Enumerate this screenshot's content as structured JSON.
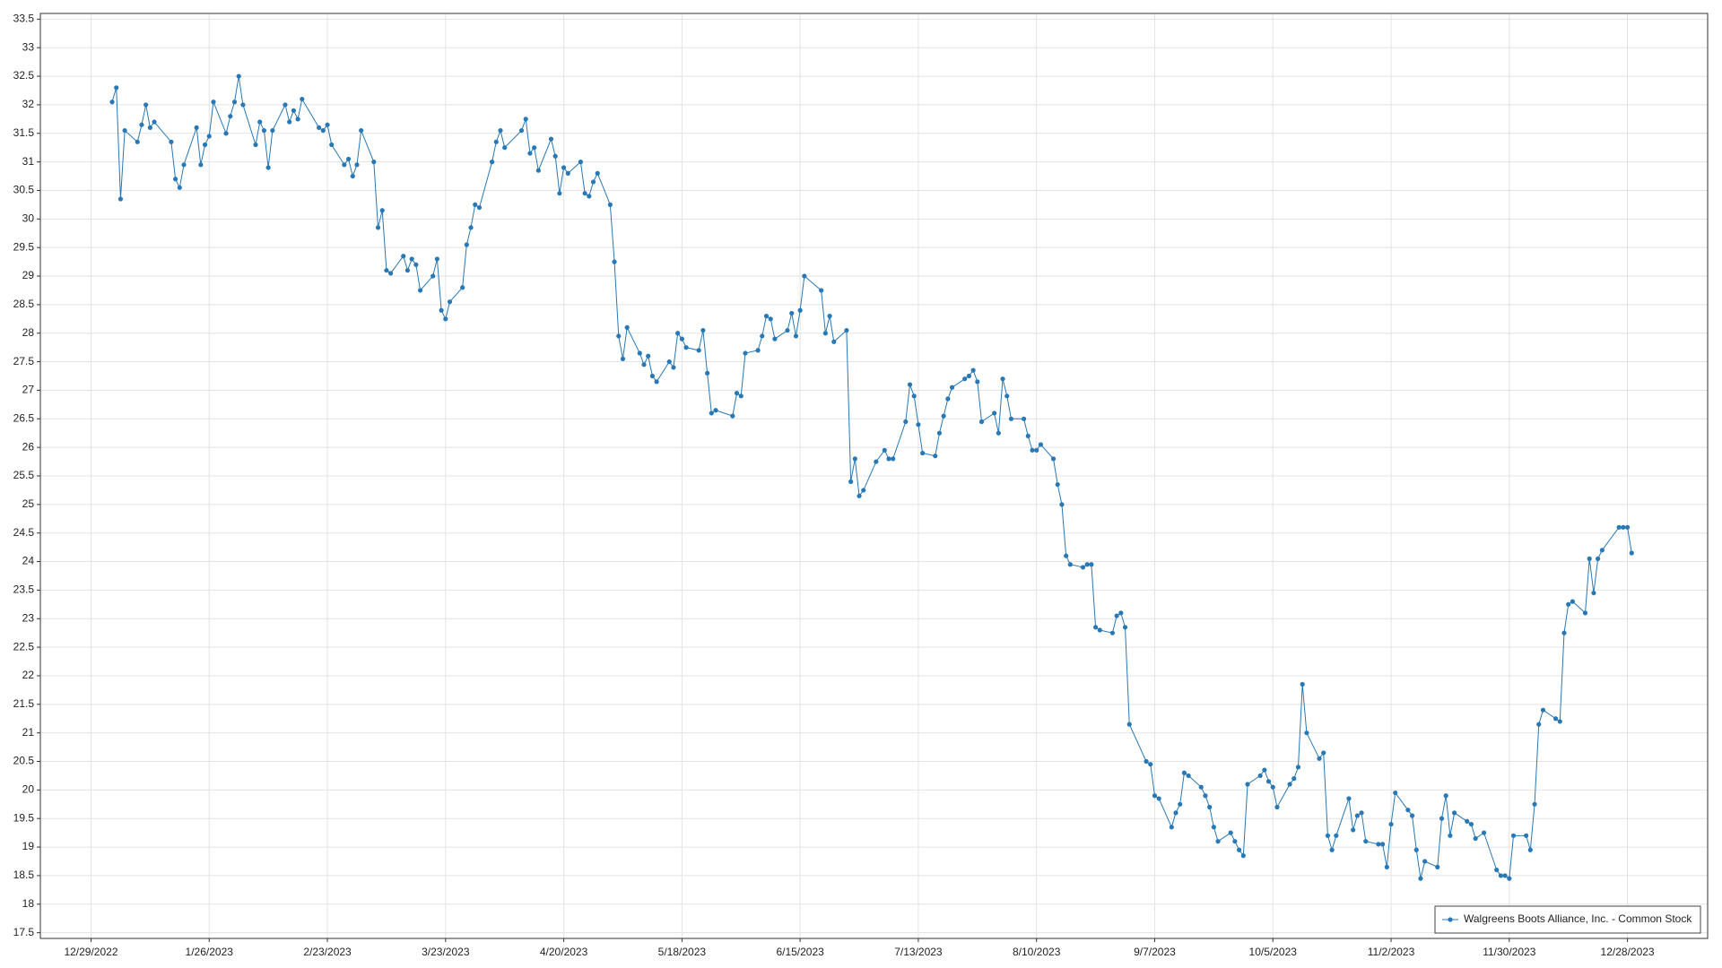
{
  "chart_data": {
    "type": "line",
    "x": [
      "2023-01-03",
      "2023-01-04",
      "2023-01-05",
      "2023-01-06",
      "2023-01-09",
      "2023-01-10",
      "2023-01-11",
      "2023-01-12",
      "2023-01-13",
      "2023-01-17",
      "2023-01-18",
      "2023-01-19",
      "2023-01-20",
      "2023-01-23",
      "2023-01-24",
      "2023-01-25",
      "2023-01-26",
      "2023-01-27",
      "2023-01-30",
      "2023-01-31",
      "2023-02-01",
      "2023-02-02",
      "2023-02-03",
      "2023-02-06",
      "2023-02-07",
      "2023-02-08",
      "2023-02-09",
      "2023-02-10",
      "2023-02-13",
      "2023-02-14",
      "2023-02-15",
      "2023-02-16",
      "2023-02-17",
      "2023-02-21",
      "2023-02-22",
      "2023-02-23",
      "2023-02-24",
      "2023-02-27",
      "2023-02-28",
      "2023-03-01",
      "2023-03-02",
      "2023-03-03",
      "2023-03-06",
      "2023-03-07",
      "2023-03-08",
      "2023-03-09",
      "2023-03-10",
      "2023-03-13",
      "2023-03-14",
      "2023-03-15",
      "2023-03-16",
      "2023-03-17",
      "2023-03-20",
      "2023-03-21",
      "2023-03-22",
      "2023-03-23",
      "2023-03-24",
      "2023-03-27",
      "2023-03-28",
      "2023-03-29",
      "2023-03-30",
      "2023-03-31",
      "2023-04-03",
      "2023-04-04",
      "2023-04-05",
      "2023-04-06",
      "2023-04-10",
      "2023-04-11",
      "2023-04-12",
      "2023-04-13",
      "2023-04-14",
      "2023-04-17",
      "2023-04-18",
      "2023-04-19",
      "2023-04-20",
      "2023-04-21",
      "2023-04-24",
      "2023-04-25",
      "2023-04-26",
      "2023-04-27",
      "2023-04-28",
      "2023-05-01",
      "2023-05-02",
      "2023-05-03",
      "2023-05-04",
      "2023-05-05",
      "2023-05-08",
      "2023-05-09",
      "2023-05-10",
      "2023-05-11",
      "2023-05-12",
      "2023-05-15",
      "2023-05-16",
      "2023-05-17",
      "2023-05-18",
      "2023-05-19",
      "2023-05-22",
      "2023-05-23",
      "2023-05-24",
      "2023-05-25",
      "2023-05-26",
      "2023-05-30",
      "2023-05-31",
      "2023-06-01",
      "2023-06-02",
      "2023-06-05",
      "2023-06-06",
      "2023-06-07",
      "2023-06-08",
      "2023-06-09",
      "2023-06-12",
      "2023-06-13",
      "2023-06-14",
      "2023-06-15",
      "2023-06-16",
      "2023-06-20",
      "2023-06-21",
      "2023-06-22",
      "2023-06-23",
      "2023-06-26",
      "2023-06-27",
      "2023-06-28",
      "2023-06-29",
      "2023-06-30",
      "2023-07-03",
      "2023-07-05",
      "2023-07-06",
      "2023-07-07",
      "2023-07-10",
      "2023-07-11",
      "2023-07-12",
      "2023-07-13",
      "2023-07-14",
      "2023-07-17",
      "2023-07-18",
      "2023-07-19",
      "2023-07-20",
      "2023-07-21",
      "2023-07-24",
      "2023-07-25",
      "2023-07-26",
      "2023-07-27",
      "2023-07-28",
      "2023-07-31",
      "2023-08-01",
      "2023-08-02",
      "2023-08-03",
      "2023-08-04",
      "2023-08-07",
      "2023-08-08",
      "2023-08-09",
      "2023-08-10",
      "2023-08-11",
      "2023-08-14",
      "2023-08-15",
      "2023-08-16",
      "2023-08-17",
      "2023-08-18",
      "2023-08-21",
      "2023-08-22",
      "2023-08-23",
      "2023-08-24",
      "2023-08-25",
      "2023-08-28",
      "2023-08-29",
      "2023-08-30",
      "2023-08-31",
      "2023-09-01",
      "2023-09-05",
      "2023-09-06",
      "2023-09-07",
      "2023-09-08",
      "2023-09-11",
      "2023-09-12",
      "2023-09-13",
      "2023-09-14",
      "2023-09-15",
      "2023-09-18",
      "2023-09-19",
      "2023-09-20",
      "2023-09-21",
      "2023-09-22",
      "2023-09-25",
      "2023-09-26",
      "2023-09-27",
      "2023-09-28",
      "2023-09-29",
      "2023-10-02",
      "2023-10-03",
      "2023-10-04",
      "2023-10-05",
      "2023-10-06",
      "2023-10-09",
      "2023-10-10",
      "2023-10-11",
      "2023-10-12",
      "2023-10-13",
      "2023-10-16",
      "2023-10-17",
      "2023-10-18",
      "2023-10-19",
      "2023-10-20",
      "2023-10-23",
      "2023-10-24",
      "2023-10-25",
      "2023-10-26",
      "2023-10-27",
      "2023-10-30",
      "2023-10-31",
      "2023-11-01",
      "2023-11-02",
      "2023-11-03",
      "2023-11-06",
      "2023-11-07",
      "2023-11-08",
      "2023-11-09",
      "2023-11-10",
      "2023-11-13",
      "2023-11-14",
      "2023-11-15",
      "2023-11-16",
      "2023-11-17",
      "2023-11-20",
      "2023-11-21",
      "2023-11-22",
      "2023-11-24",
      "2023-11-27",
      "2023-11-28",
      "2023-11-29",
      "2023-11-30",
      "2023-12-01",
      "2023-12-04",
      "2023-12-05",
      "2023-12-06",
      "2023-12-07",
      "2023-12-08",
      "2023-12-11",
      "2023-12-12",
      "2023-12-13",
      "2023-12-14",
      "2023-12-15",
      "2023-12-18",
      "2023-12-19",
      "2023-12-20",
      "2023-12-21",
      "2023-12-22",
      "2023-12-26",
      "2023-12-27",
      "2023-12-28",
      "2023-12-29"
    ],
    "series": [
      {
        "name": "Walgreens Boots Alliance, Inc. - Common Stock",
        "color": "#2878b5",
        "values": [
          32.05,
          32.3,
          30.35,
          31.55,
          31.35,
          31.65,
          32.0,
          31.6,
          31.7,
          31.35,
          30.7,
          30.55,
          30.95,
          31.6,
          30.95,
          31.3,
          31.45,
          32.05,
          31.5,
          31.8,
          32.05,
          32.5,
          32.0,
          31.3,
          31.7,
          31.55,
          30.9,
          31.55,
          32.0,
          31.7,
          31.9,
          31.75,
          32.1,
          31.6,
          31.55,
          31.65,
          31.3,
          30.95,
          31.05,
          30.75,
          30.95,
          31.55,
          31.0,
          29.85,
          30.15,
          29.1,
          29.05,
          29.35,
          29.1,
          29.3,
          29.2,
          28.75,
          29.0,
          29.3,
          28.4,
          28.25,
          28.55,
          28.8,
          29.55,
          29.85,
          30.25,
          30.2,
          31.0,
          31.35,
          31.55,
          31.25,
          31.55,
          31.75,
          31.15,
          31.25,
          30.85,
          31.4,
          31.1,
          30.45,
          30.9,
          30.8,
          31.0,
          30.45,
          30.4,
          30.65,
          30.8,
          30.25,
          29.25,
          27.95,
          27.55,
          28.1,
          27.65,
          27.45,
          27.6,
          27.25,
          27.15,
          27.5,
          27.4,
          28.0,
          27.9,
          27.75,
          27.7,
          28.05,
          27.3,
          26.6,
          26.65,
          26.55,
          26.95,
          26.9,
          27.65,
          27.7,
          27.95,
          28.3,
          28.25,
          27.9,
          28.05,
          28.35,
          27.95,
          28.4,
          29.0,
          28.75,
          28.0,
          28.3,
          27.85,
          28.05,
          25.4,
          25.8,
          25.15,
          25.25,
          25.75,
          25.95,
          25.8,
          25.8,
          26.45,
          27.1,
          26.9,
          26.4,
          25.9,
          25.85,
          26.25,
          26.55,
          26.85,
          27.05,
          27.2,
          27.25,
          27.35,
          27.15,
          26.45,
          26.6,
          26.25,
          27.2,
          26.9,
          26.5,
          26.5,
          26.2,
          25.95,
          25.95,
          26.05,
          25.8,
          25.35,
          25.0,
          24.1,
          23.95,
          23.9,
          23.95,
          23.95,
          22.85,
          22.8,
          22.75,
          23.05,
          23.1,
          22.85,
          21.15,
          20.5,
          20.45,
          19.9,
          19.85,
          19.35,
          19.6,
          19.75,
          20.3,
          20.25,
          20.05,
          19.9,
          19.7,
          19.35,
          19.1,
          19.25,
          19.1,
          18.95,
          18.85,
          20.1,
          20.25,
          20.35,
          20.15,
          20.05,
          19.7,
          20.1,
          20.2,
          20.4,
          21.85,
          21.0,
          20.55,
          20.65,
          19.2,
          18.95,
          19.2,
          19.85,
          19.3,
          19.55,
          19.6,
          19.1,
          19.05,
          19.05,
          18.65,
          19.4,
          19.95,
          19.65,
          19.55,
          18.95,
          18.45,
          18.75,
          18.65,
          19.5,
          19.9,
          19.2,
          19.6,
          19.45,
          19.4,
          19.15,
          19.25,
          18.6,
          18.5,
          18.5,
          18.45,
          19.2,
          19.2,
          18.95,
          19.75,
          21.15,
          21.4,
          21.25,
          21.2,
          22.75,
          23.25,
          23.3,
          23.1,
          24.05,
          23.45,
          24.05,
          24.2,
          24.6,
          24.6,
          24.6,
          24.15
        ]
      }
    ],
    "xlim": [
      "2022-12-17",
      "2024-01-16"
    ],
    "xticks": [
      {
        "value": "2022-12-29",
        "label": "12/29/2022"
      },
      {
        "value": "2023-01-26",
        "label": "1/26/2023"
      },
      {
        "value": "2023-02-23",
        "label": "2/23/2023"
      },
      {
        "value": "2023-03-23",
        "label": "3/23/2023"
      },
      {
        "value": "2023-04-20",
        "label": "4/20/2023"
      },
      {
        "value": "2023-05-18",
        "label": "5/18/2023"
      },
      {
        "value": "2023-06-15",
        "label": "6/15/2023"
      },
      {
        "value": "2023-07-13",
        "label": "7/13/2023"
      },
      {
        "value": "2023-08-10",
        "label": "8/10/2023"
      },
      {
        "value": "2023-09-07",
        "label": "9/7/2023"
      },
      {
        "value": "2023-10-05",
        "label": "10/5/2023"
      },
      {
        "value": "2023-11-02",
        "label": "11/2/2023"
      },
      {
        "value": "2023-11-30",
        "label": "11/30/2023"
      },
      {
        "value": "2023-12-28",
        "label": "12/28/2023"
      }
    ],
    "ylim": [
      17.4,
      33.6
    ],
    "yticks": [
      17.5,
      18,
      18.5,
      19,
      19.5,
      20,
      20.5,
      21,
      21.5,
      22,
      22.5,
      23,
      23.5,
      24,
      24.5,
      25,
      25.5,
      26,
      26.5,
      27,
      27.5,
      28,
      28.5,
      29,
      29.5,
      30,
      30.5,
      31,
      31.5,
      32,
      32.5,
      33,
      33.5
    ],
    "grid": true,
    "legend": "lower right"
  }
}
